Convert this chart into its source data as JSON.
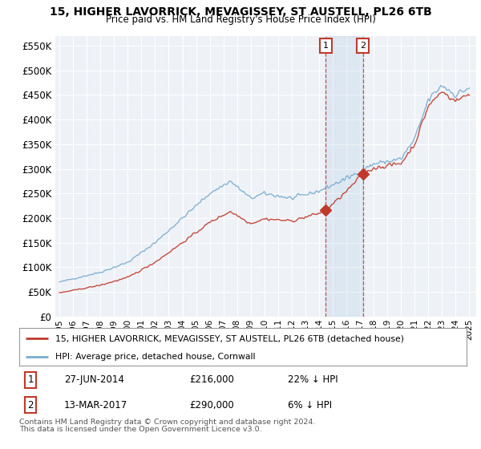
{
  "title": "15, HIGHER LAVORRICK, MEVAGISSEY, ST AUSTELL, PL26 6TB",
  "subtitle": "Price paid vs. HM Land Registry's House Price Index (HPI)",
  "yticks": [
    0,
    50000,
    100000,
    150000,
    200000,
    250000,
    300000,
    350000,
    400000,
    450000,
    500000,
    550000
  ],
  "ytick_labels": [
    "£0",
    "£50K",
    "£100K",
    "£150K",
    "£200K",
    "£250K",
    "£300K",
    "£350K",
    "£400K",
    "£450K",
    "£500K",
    "£550K"
  ],
  "hpi_color": "#7aabcf",
  "price_color": "#c0392b",
  "sale1": {
    "label": "1",
    "date": "27-JUN-2014",
    "price": "£216,000",
    "pct": "22% ↓ HPI",
    "year": 2014.5
  },
  "sale2": {
    "label": "2",
    "date": "13-MAR-2017",
    "price": "£290,000",
    "pct": "6% ↓ HPI",
    "year": 2017.21
  },
  "sale1_price": 216000,
  "sale2_price": 290000,
  "legend_property": "15, HIGHER LAVORRICK, MEVAGISSEY, ST AUSTELL, PL26 6TB (detached house)",
  "legend_hpi": "HPI: Average price, detached house, Cornwall",
  "footnote1": "Contains HM Land Registry data © Crown copyright and database right 2024.",
  "footnote2": "This data is licensed under the Open Government Licence v3.0.",
  "background_color": "#ffffff",
  "plot_bg_color": "#eef2f7",
  "grid_color": "#ffffff",
  "start_year": 1995,
  "end_year": 2025
}
